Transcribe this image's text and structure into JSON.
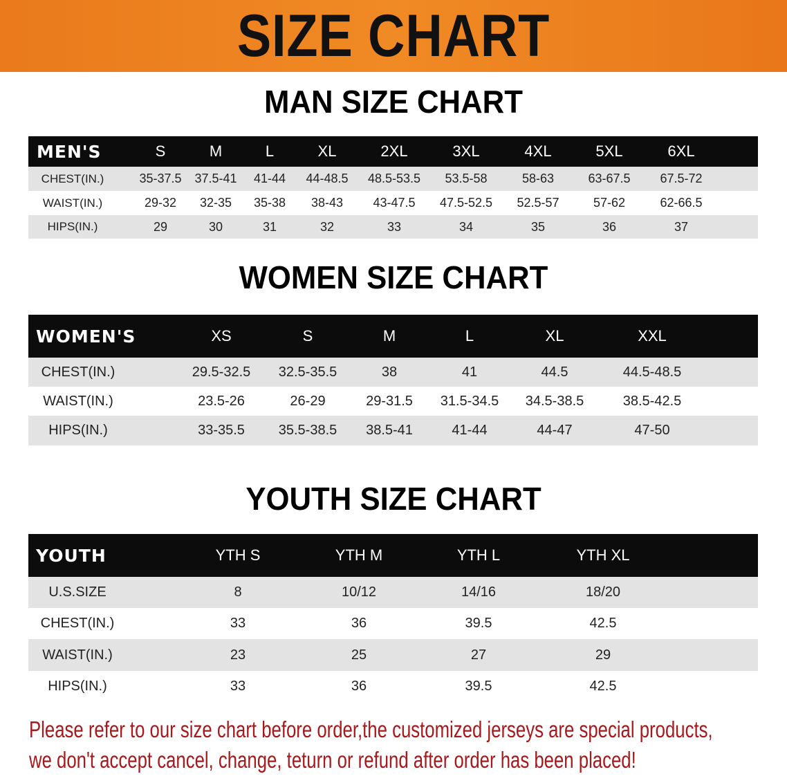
{
  "title": "SIZE CHART",
  "men": {
    "heading": "MAN SIZE CHART",
    "header": [
      "MEN'S",
      "S",
      "M",
      "L",
      "XL",
      "2XL",
      "3XL",
      "4XL",
      "5XL",
      "6XL"
    ],
    "rows": [
      [
        "CHEST(IN.)",
        "35-37.5",
        "37.5-41",
        "41-44",
        "44-48.5",
        "48.5-53.5",
        "53.5-58",
        "58-63",
        "63-67.5",
        "67.5-72"
      ],
      [
        "WAIST(IN.)",
        "29-32",
        "32-35",
        "35-38",
        "38-43",
        "43-47.5",
        "47.5-52.5",
        "52.5-57",
        "57-62",
        "62-66.5"
      ],
      [
        "HIPS(IN.)",
        "29",
        "30",
        "31",
        "32",
        "33",
        "34",
        "35",
        "36",
        "37"
      ]
    ]
  },
  "women": {
    "heading": "WOMEN SIZE CHART",
    "header": [
      "WOMEN'S",
      "XS",
      "S",
      "M",
      "L",
      "XL",
      "XXL"
    ],
    "rows": [
      [
        "CHEST(IN.)",
        "29.5-32.5",
        "32.5-35.5",
        "38",
        "41",
        "44.5",
        "44.5-48.5"
      ],
      [
        "WAIST(IN.)",
        "23.5-26",
        "26-29",
        "29-31.5",
        "31.5-34.5",
        "34.5-38.5",
        "38.5-42.5"
      ],
      [
        "HIPS(IN.)",
        "33-35.5",
        "35.5-38.5",
        "38.5-41",
        "41-44",
        "44-47",
        "47-50"
      ]
    ]
  },
  "youth": {
    "heading": "YOUTH SIZE CHART",
    "header": [
      "YOUTH",
      "YTH S",
      "YTH M",
      "YTH L",
      "YTH XL"
    ],
    "rows": [
      [
        "U.S.SIZE",
        "8",
        "10/12",
        "14/16",
        "18/20"
      ],
      [
        "CHEST(IN.)",
        "33",
        "36",
        "39.5",
        "42.5"
      ],
      [
        "WAIST(IN.)",
        "23",
        "25",
        "27",
        "29"
      ],
      [
        "HIPS(IN.)",
        "33",
        "36",
        "39.5",
        "42.5"
      ]
    ]
  },
  "notice": {
    "line1": "Please refer to our size chart before order,the customized jerseys are special products,",
    "line2": "we don't accept cancel, change, teturn or refund after order has been placed!"
  },
  "colors": {
    "banner": "#ec7c1e",
    "header_row": "#0c0c0c",
    "stripe": "#e3e3e3",
    "notice": "#a8191c"
  }
}
